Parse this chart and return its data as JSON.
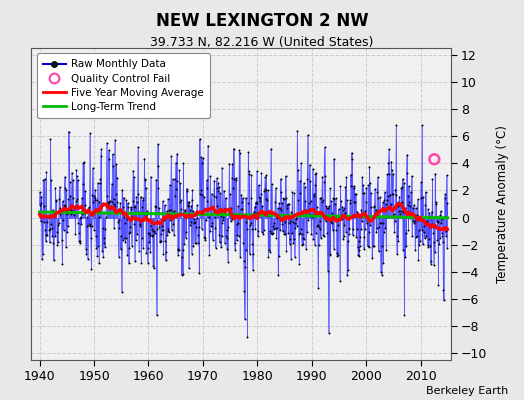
{
  "title": "NEW LEXINGTON 2 NW",
  "subtitle": "39.733 N, 82.216 W (United States)",
  "ylabel": "Temperature Anomaly (°C)",
  "credit": "Berkeley Earth",
  "xlim": [
    1938.5,
    2015.5
  ],
  "ylim": [
    -10.5,
    12.5
  ],
  "yticks": [
    -10,
    -8,
    -6,
    -4,
    -2,
    0,
    2,
    4,
    6,
    8,
    10,
    12
  ],
  "xticks": [
    1940,
    1950,
    1960,
    1970,
    1980,
    1990,
    2000,
    2010
  ],
  "start_year": 1940,
  "end_year": 2014,
  "fig_bg_color": "#e8e8e8",
  "plot_bg_color": "#f0f0f0",
  "raw_line_color": "#4444ff",
  "raw_dot_color": "#000000",
  "moving_avg_color": "#ff0000",
  "trend_color": "#00bb00",
  "qc_fail_color": "#ff44aa",
  "qc_fail_year": 2012,
  "qc_fail_month": 6,
  "qc_fail_value": 4.3,
  "legend_raw_color": "#0000cc",
  "legend_qc_color": "#ff44aa",
  "legend_ma_color": "#ff0000",
  "legend_trend_color": "#00bb00"
}
